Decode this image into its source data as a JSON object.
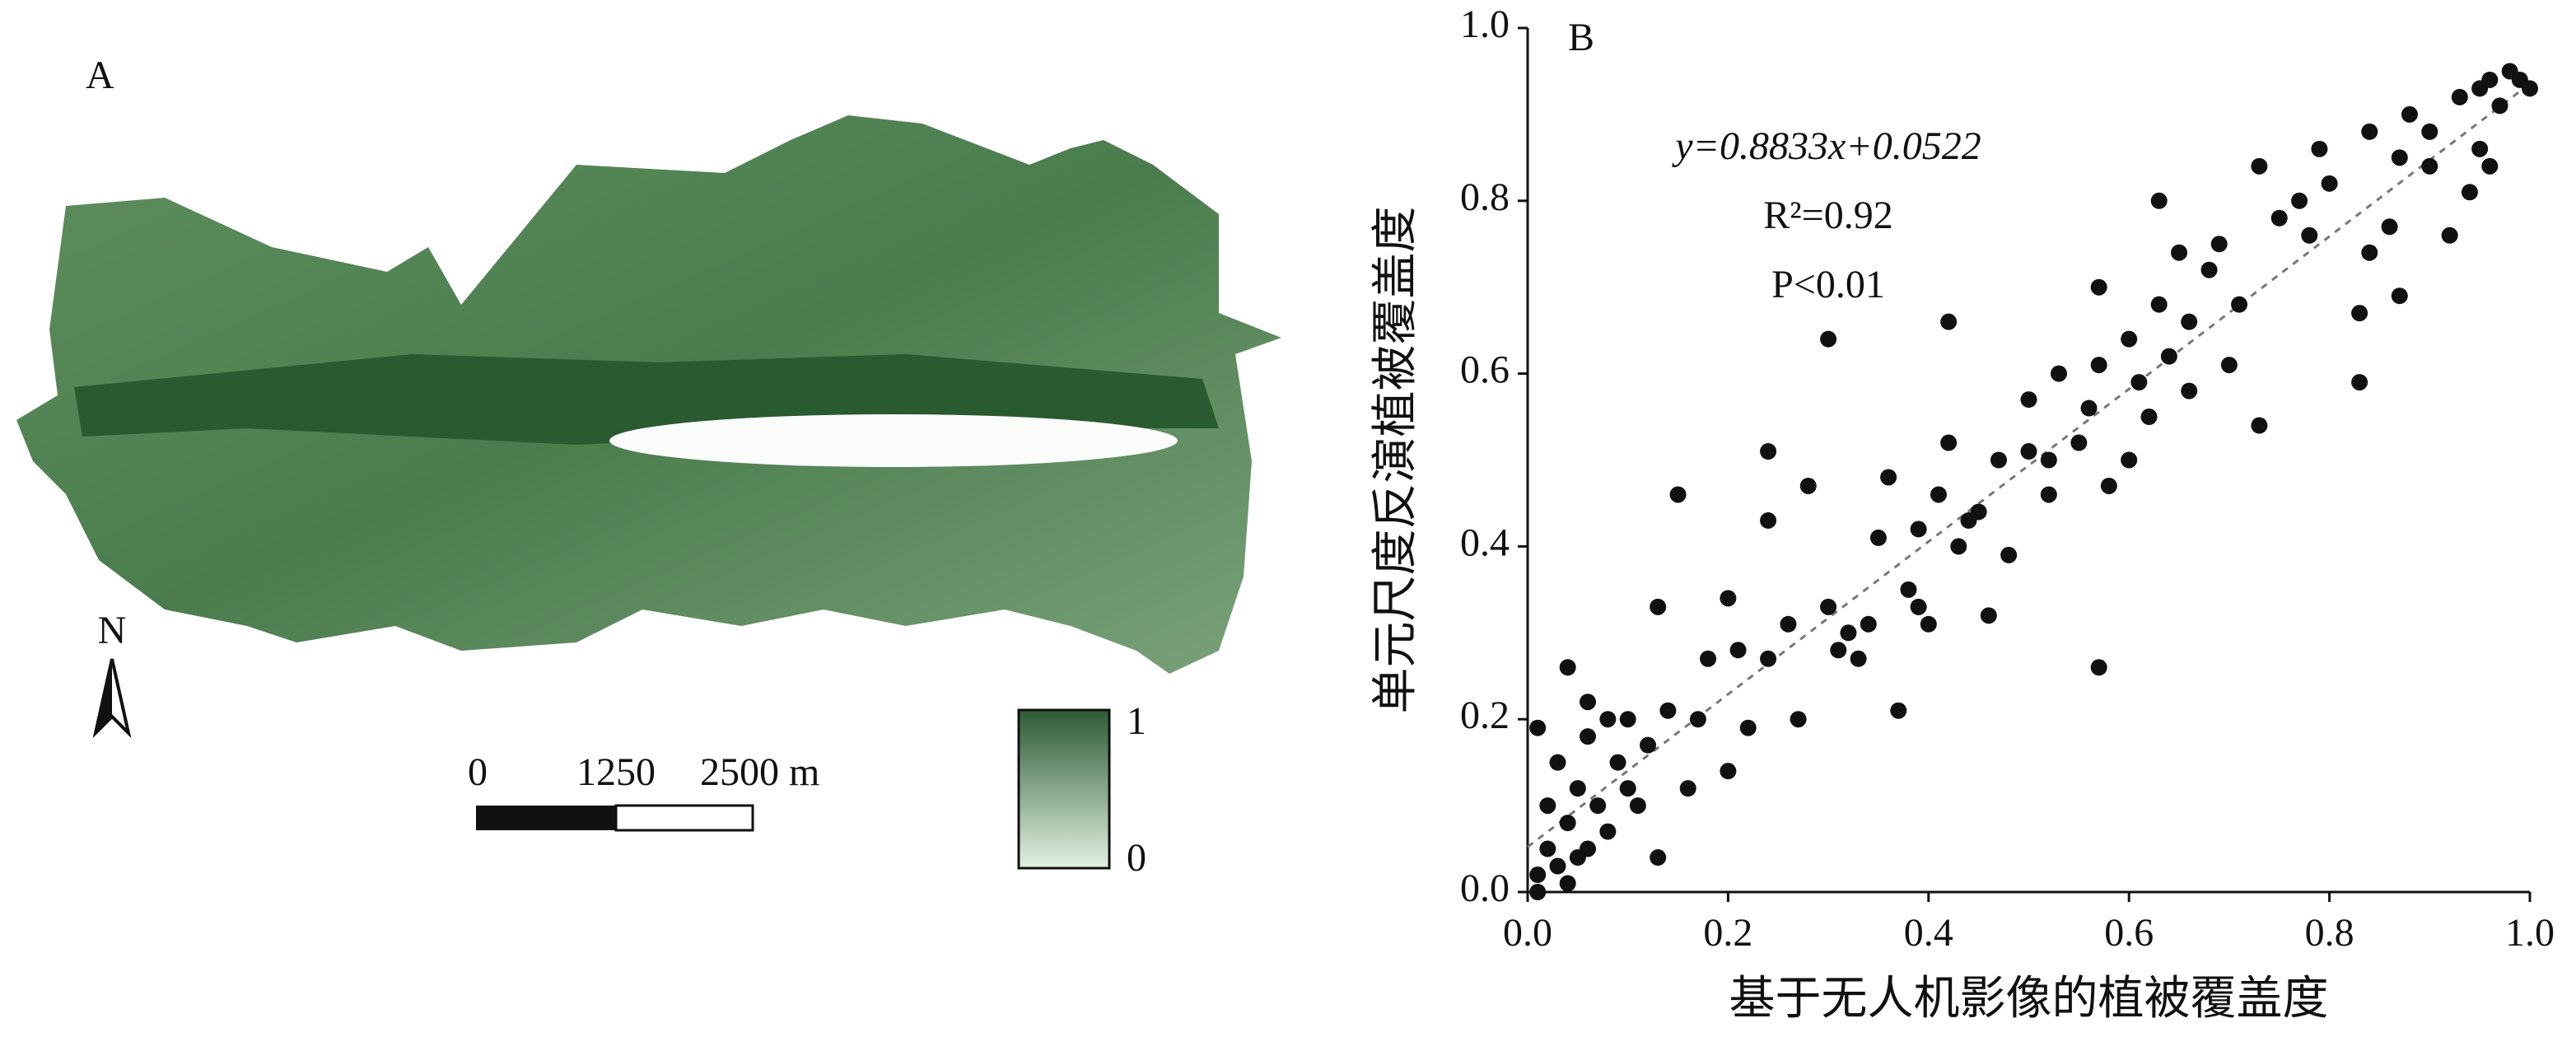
{
  "map": {
    "label": "A",
    "north": "N",
    "scale_labels": [
      "0",
      "1250",
      "2500 m"
    ],
    "colorbar": {
      "ticks": [
        0,
        1
      ],
      "colors": [
        "#e2f2e2",
        "#2c5a33"
      ]
    }
  },
  "chart_data": {
    "type": "scatter",
    "label": "B",
    "xlabel": "基于无人机影像的植被覆盖度",
    "ylabel": "单元尺度反演植被覆盖度",
    "annotations": [
      "y=0.8833x+0.0522",
      "R²=0.92",
      "P<0.01"
    ],
    "fit": {
      "slope": 0.8833,
      "intercept": 0.0522
    },
    "xlim": [
      0,
      1
    ],
    "ylim": [
      0,
      1
    ],
    "xticks": [
      {
        "value": 0,
        "label": "0.0"
      },
      0.2,
      0.4,
      0.6,
      0.8,
      {
        "value": 1,
        "label": "1.0"
      }
    ],
    "yticks": [
      {
        "value": 0,
        "label": "0.0"
      },
      0.2,
      0.4,
      0.6,
      0.8,
      {
        "value": 1,
        "label": "1.0"
      }
    ],
    "color": "#111111",
    "x": [
      0.01,
      0.02,
      0.03,
      0.01,
      0.04,
      0.05,
      0.02,
      0.03,
      0.05,
      0.06,
      0.07,
      0.08,
      0.01,
      0.04,
      0.06,
      0.09,
      0.1,
      0.12,
      0.13,
      0.11,
      0.08,
      0.15,
      0.13,
      0.14,
      0.16,
      0.17,
      0.18,
      0.2,
      0.2,
      0.22,
      0.24,
      0.24,
      0.24,
      0.26,
      0.27,
      0.28,
      0.3,
      0.3,
      0.31,
      0.32,
      0.33,
      0.34,
      0.35,
      0.36,
      0.37,
      0.38,
      0.39,
      0.4,
      0.41,
      0.42,
      0.42,
      0.43,
      0.45,
      0.46,
      0.47,
      0.48,
      0.5,
      0.5,
      0.52,
      0.53,
      0.55,
      0.56,
      0.57,
      0.57,
      0.57,
      0.58,
      0.6,
      0.6,
      0.61,
      0.62,
      0.63,
      0.63,
      0.64,
      0.65,
      0.66,
      0.68,
      0.69,
      0.7,
      0.71,
      0.73,
      0.73,
      0.75,
      0.77,
      0.78,
      0.79,
      0.8,
      0.83,
      0.83,
      0.84,
      0.84,
      0.86,
      0.87,
      0.87,
      0.88,
      0.9,
      0.9,
      0.92,
      0.93,
      0.94,
      0.95,
      0.95,
      0.96,
      0.97,
      0.98,
      0.99,
      1.0,
      0.96,
      0.39,
      0.21,
      0.44,
      0.66,
      0.52,
      0.1,
      0.04,
      0.06
    ],
    "y": [
      0.02,
      0.05,
      0.03,
      0.0,
      0.08,
      0.04,
      0.1,
      0.15,
      0.12,
      0.18,
      0.1,
      0.2,
      0.19,
      0.26,
      0.22,
      0.15,
      0.2,
      0.17,
      0.04,
      0.1,
      0.07,
      0.46,
      0.33,
      0.21,
      0.12,
      0.2,
      0.27,
      0.34,
      0.14,
      0.19,
      0.27,
      0.43,
      0.51,
      0.31,
      0.2,
      0.47,
      0.64,
      0.33,
      0.28,
      0.3,
      0.27,
      0.31,
      0.41,
      0.48,
      0.21,
      0.35,
      0.42,
      0.31,
      0.46,
      0.66,
      0.52,
      0.4,
      0.44,
      0.32,
      0.5,
      0.39,
      0.57,
      0.51,
      0.5,
      0.6,
      0.52,
      0.56,
      0.26,
      0.7,
      0.61,
      0.47,
      0.5,
      0.64,
      0.59,
      0.55,
      0.8,
      0.68,
      0.62,
      0.74,
      0.58,
      0.72,
      0.75,
      0.61,
      0.68,
      0.54,
      0.84,
      0.78,
      0.8,
      0.76,
      0.86,
      0.82,
      0.59,
      0.67,
      0.74,
      0.88,
      0.77,
      0.69,
      0.85,
      0.9,
      0.84,
      0.88,
      0.76,
      0.92,
      0.81,
      0.86,
      0.93,
      0.94,
      0.91,
      0.95,
      0.94,
      0.93,
      0.84,
      0.33,
      0.28,
      0.43,
      0.66,
      0.46,
      0.12,
      0.01,
      0.05
    ]
  }
}
